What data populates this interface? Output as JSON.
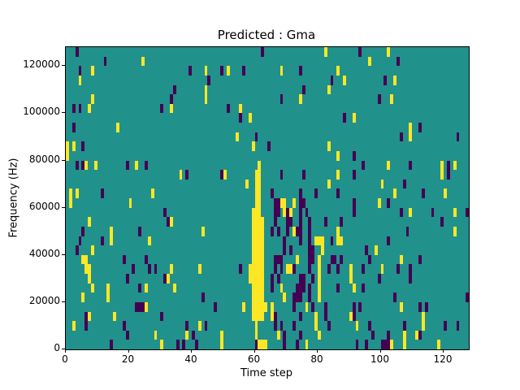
{
  "figure": {
    "title": "Predicted : Gma",
    "xlabel": "Time step",
    "ylabel": "Frequency (Hz)"
  },
  "chart_data": {
    "type": "heatmap",
    "title": "Predicted : Gma",
    "xlabel": "Time step",
    "ylabel": "Frequency (Hz)",
    "n_cols": 128,
    "n_rows": 32,
    "x_range": [
      0,
      128
    ],
    "y_range_hz": [
      0,
      128000
    ],
    "hz_per_row": 4000,
    "x_ticks": [
      0,
      20,
      40,
      60,
      80,
      100,
      120
    ],
    "y_ticks": [
      0,
      20000,
      40000,
      60000,
      80000,
      100000,
      120000
    ],
    "legend": "none",
    "grid": false,
    "colors": {
      "background_value_color": "#21918c",
      "yellow_value_color": "#fde725",
      "dark_value_color": "#440154",
      "axes_color": "#000000",
      "figure_background": "#ffffff"
    },
    "note": "cells are [col 0-127 from left, row 0-31 from top]; each row = 4000 Hz, row 31 = 0-4000 Hz",
    "yellow_cells": [
      [
        82,
        0
      ],
      [
        102,
        0
      ],
      [
        24,
        1
      ],
      [
        96,
        1
      ],
      [
        8,
        2
      ],
      [
        44,
        2
      ],
      [
        51,
        2
      ],
      [
        68,
        2
      ],
      [
        86,
        2
      ],
      [
        4,
        3
      ],
      [
        88,
        3
      ],
      [
        104,
        3
      ],
      [
        44,
        4
      ],
      [
        83,
        4
      ],
      [
        8,
        5
      ],
      [
        44,
        5
      ],
      [
        74,
        5
      ],
      [
        103,
        5
      ],
      [
        7,
        6
      ],
      [
        33,
        6
      ],
      [
        55,
        6
      ],
      [
        58,
        7
      ],
      [
        91,
        7
      ],
      [
        16,
        8
      ],
      [
        109,
        8
      ],
      [
        54,
        9
      ],
      [
        109,
        9
      ],
      [
        0,
        10
      ],
      [
        2,
        10
      ],
      [
        59,
        10
      ],
      [
        83,
        10
      ],
      [
        0,
        11
      ],
      [
        86,
        11
      ],
      [
        6,
        12
      ],
      [
        9,
        12
      ],
      [
        22,
        12
      ],
      [
        61,
        12
      ],
      [
        102,
        12
      ],
      [
        119,
        12
      ],
      [
        123,
        12
      ],
      [
        36,
        13
      ],
      [
        50,
        13
      ],
      [
        60,
        13
      ],
      [
        61,
        13
      ],
      [
        86,
        13
      ],
      [
        119,
        13
      ],
      [
        57,
        14
      ],
      [
        60,
        14
      ],
      [
        61,
        14
      ],
      [
        83,
        14
      ],
      [
        100,
        14
      ],
      [
        1,
        15
      ],
      [
        3,
        15
      ],
      [
        27,
        15
      ],
      [
        60,
        15
      ],
      [
        61,
        15
      ],
      [
        104,
        15
      ],
      [
        120,
        15
      ],
      [
        1,
        16
      ],
      [
        20,
        16
      ],
      [
        60,
        16
      ],
      [
        61,
        16
      ],
      [
        68,
        16
      ],
      [
        69,
        16
      ],
      [
        72,
        16
      ],
      [
        99,
        16
      ],
      [
        59,
        17
      ],
      [
        60,
        17
      ],
      [
        61,
        17
      ],
      [
        69,
        17
      ],
      [
        71,
        17
      ],
      [
        109,
        17
      ],
      [
        123,
        17
      ],
      [
        7,
        18
      ],
      [
        33,
        18
      ],
      [
        59,
        18
      ],
      [
        60,
        18
      ],
      [
        61,
        18
      ],
      [
        62,
        18
      ],
      [
        14,
        19
      ],
      [
        43,
        19
      ],
      [
        59,
        19
      ],
      [
        60,
        19
      ],
      [
        61,
        19
      ],
      [
        62,
        19
      ],
      [
        72,
        19
      ],
      [
        86,
        19
      ],
      [
        123,
        19
      ],
      [
        14,
        20
      ],
      [
        26,
        20
      ],
      [
        59,
        20
      ],
      [
        60,
        20
      ],
      [
        61,
        20
      ],
      [
        62,
        20
      ],
      [
        79,
        20
      ],
      [
        80,
        20
      ],
      [
        81,
        20
      ],
      [
        86,
        20
      ],
      [
        87,
        20
      ],
      [
        8,
        21
      ],
      [
        59,
        21
      ],
      [
        60,
        21
      ],
      [
        61,
        21
      ],
      [
        62,
        21
      ],
      [
        81,
        21
      ],
      [
        98,
        21
      ],
      [
        5,
        22
      ],
      [
        6,
        22
      ],
      [
        59,
        22
      ],
      [
        60,
        22
      ],
      [
        61,
        22
      ],
      [
        62,
        22
      ],
      [
        73,
        22
      ],
      [
        80,
        22
      ],
      [
        106,
        22
      ],
      [
        6,
        23
      ],
      [
        7,
        23
      ],
      [
        33,
        23
      ],
      [
        42,
        23
      ],
      [
        58,
        23
      ],
      [
        59,
        23
      ],
      [
        60,
        23
      ],
      [
        61,
        23
      ],
      [
        62,
        23
      ],
      [
        70,
        23
      ],
      [
        71,
        23
      ],
      [
        80,
        23
      ],
      [
        90,
        23
      ],
      [
        100,
        23
      ],
      [
        7,
        24
      ],
      [
        32,
        24
      ],
      [
        58,
        24
      ],
      [
        59,
        24
      ],
      [
        60,
        24
      ],
      [
        61,
        24
      ],
      [
        62,
        24
      ],
      [
        80,
        24
      ],
      [
        90,
        24
      ],
      [
        8,
        25
      ],
      [
        13,
        25
      ],
      [
        25,
        25
      ],
      [
        34,
        25
      ],
      [
        59,
        25
      ],
      [
        60,
        25
      ],
      [
        61,
        25
      ],
      [
        62,
        25
      ],
      [
        68,
        25
      ],
      [
        80,
        25
      ],
      [
        91,
        25
      ],
      [
        5,
        26
      ],
      [
        13,
        26
      ],
      [
        59,
        26
      ],
      [
        60,
        26
      ],
      [
        61,
        26
      ],
      [
        62,
        26
      ],
      [
        69,
        26
      ],
      [
        80,
        26
      ],
      [
        25,
        27
      ],
      [
        56,
        27
      ],
      [
        59,
        27
      ],
      [
        60,
        27
      ],
      [
        61,
        27
      ],
      [
        62,
        27
      ],
      [
        63,
        27
      ],
      [
        65,
        27
      ],
      [
        76,
        27
      ],
      [
        106,
        27
      ],
      [
        7,
        28
      ],
      [
        15,
        28
      ],
      [
        59,
        28
      ],
      [
        60,
        28
      ],
      [
        61,
        28
      ],
      [
        62,
        28
      ],
      [
        65,
        28
      ],
      [
        79,
        28
      ],
      [
        90,
        28
      ],
      [
        113,
        28
      ],
      [
        2,
        29
      ],
      [
        42,
        29
      ],
      [
        60,
        29
      ],
      [
        79,
        29
      ],
      [
        92,
        29
      ],
      [
        113,
        29
      ],
      [
        28,
        30
      ],
      [
        38,
        30
      ],
      [
        49,
        30
      ],
      [
        60,
        30
      ],
      [
        67,
        30
      ],
      [
        80,
        30
      ],
      [
        107,
        30
      ],
      [
        111,
        30
      ],
      [
        30,
        31
      ],
      [
        49,
        31
      ],
      [
        61,
        31
      ],
      [
        62,
        31
      ],
      [
        63,
        31
      ],
      [
        76,
        31
      ],
      [
        103,
        31
      ],
      [
        107,
        31
      ],
      [
        118,
        31
      ]
    ],
    "dark_cells": [
      [
        3,
        0
      ],
      [
        62,
        0
      ],
      [
        93,
        0
      ],
      [
        12,
        1
      ],
      [
        105,
        1
      ],
      [
        4,
        2
      ],
      [
        39,
        2
      ],
      [
        49,
        2
      ],
      [
        56,
        2
      ],
      [
        74,
        2
      ],
      [
        45,
        3
      ],
      [
        84,
        3
      ],
      [
        101,
        3
      ],
      [
        34,
        4
      ],
      [
        75,
        4
      ],
      [
        33,
        5
      ],
      [
        68,
        5
      ],
      [
        99,
        5
      ],
      [
        2,
        6
      ],
      [
        4,
        6
      ],
      [
        30,
        6
      ],
      [
        51,
        6
      ],
      [
        55,
        7
      ],
      [
        88,
        7
      ],
      [
        2,
        8
      ],
      [
        112,
        8
      ],
      [
        60,
        9
      ],
      [
        106,
        9
      ],
      [
        124,
        9
      ],
      [
        5,
        10
      ],
      [
        64,
        10
      ],
      [
        91,
        11
      ],
      [
        3,
        12
      ],
      [
        5,
        12
      ],
      [
        19,
        12
      ],
      [
        25,
        12
      ],
      [
        94,
        12
      ],
      [
        109,
        12
      ],
      [
        121,
        12
      ],
      [
        38,
        13
      ],
      [
        49,
        13
      ],
      [
        68,
        13
      ],
      [
        75,
        13
      ],
      [
        91,
        13
      ],
      [
        121,
        13
      ],
      [
        107,
        14
      ],
      [
        11,
        15
      ],
      [
        65,
        15
      ],
      [
        74,
        15
      ],
      [
        79,
        15
      ],
      [
        86,
        15
      ],
      [
        113,
        15
      ],
      [
        66,
        16
      ],
      [
        67,
        16
      ],
      [
        74,
        16
      ],
      [
        75,
        16
      ],
      [
        91,
        16
      ],
      [
        102,
        16
      ],
      [
        31,
        17
      ],
      [
        66,
        17
      ],
      [
        67,
        17
      ],
      [
        70,
        17
      ],
      [
        74,
        17
      ],
      [
        76,
        17
      ],
      [
        91,
        17
      ],
      [
        106,
        17
      ],
      [
        116,
        17
      ],
      [
        127,
        17
      ],
      [
        32,
        18
      ],
      [
        66,
        18
      ],
      [
        70,
        18
      ],
      [
        71,
        18
      ],
      [
        74,
        18
      ],
      [
        77,
        18
      ],
      [
        82,
        18
      ],
      [
        87,
        18
      ],
      [
        119,
        18
      ],
      [
        5,
        19
      ],
      [
        23,
        19
      ],
      [
        65,
        19
      ],
      [
        67,
        19
      ],
      [
        70,
        19
      ],
      [
        73,
        19
      ],
      [
        74,
        19
      ],
      [
        77,
        19
      ],
      [
        108,
        19
      ],
      [
        4,
        20
      ],
      [
        11,
        20
      ],
      [
        69,
        20
      ],
      [
        74,
        20
      ],
      [
        77,
        20
      ],
      [
        84,
        20
      ],
      [
        102,
        20
      ],
      [
        3,
        21
      ],
      [
        69,
        21
      ],
      [
        71,
        21
      ],
      [
        77,
        21
      ],
      [
        78,
        21
      ],
      [
        95,
        21
      ],
      [
        18,
        22
      ],
      [
        25,
        22
      ],
      [
        66,
        22
      ],
      [
        67,
        22
      ],
      [
        68,
        22
      ],
      [
        77,
        22
      ],
      [
        78,
        22
      ],
      [
        84,
        22
      ],
      [
        85,
        22
      ],
      [
        87,
        22
      ],
      [
        96,
        22
      ],
      [
        112,
        22
      ],
      [
        21,
        23
      ],
      [
        26,
        23
      ],
      [
        28,
        23
      ],
      [
        55,
        23
      ],
      [
        66,
        23
      ],
      [
        68,
        23
      ],
      [
        72,
        23
      ],
      [
        77,
        23
      ],
      [
        83,
        23
      ],
      [
        86,
        23
      ],
      [
        94,
        23
      ],
      [
        105,
        23
      ],
      [
        109,
        23
      ],
      [
        19,
        24
      ],
      [
        31,
        24
      ],
      [
        65,
        24
      ],
      [
        67,
        24
      ],
      [
        74,
        24
      ],
      [
        75,
        24
      ],
      [
        78,
        24
      ],
      [
        99,
        24
      ],
      [
        109,
        24
      ],
      [
        23,
        25
      ],
      [
        65,
        25
      ],
      [
        73,
        25
      ],
      [
        74,
        25
      ],
      [
        75,
        25
      ],
      [
        77,
        25
      ],
      [
        86,
        25
      ],
      [
        94,
        25
      ],
      [
        43,
        26
      ],
      [
        72,
        26
      ],
      [
        73,
        26
      ],
      [
        74,
        26
      ],
      [
        77,
        26
      ],
      [
        104,
        26
      ],
      [
        127,
        26
      ],
      [
        22,
        27
      ],
      [
        23,
        27
      ],
      [
        24,
        27
      ],
      [
        47,
        27
      ],
      [
        72,
        27
      ],
      [
        78,
        27
      ],
      [
        82,
        27
      ],
      [
        91,
        27
      ],
      [
        93,
        27
      ],
      [
        112,
        27
      ],
      [
        114,
        27
      ],
      [
        6,
        28
      ],
      [
        30,
        28
      ],
      [
        66,
        28
      ],
      [
        74,
        28
      ],
      [
        82,
        28
      ],
      [
        91,
        28
      ],
      [
        6,
        29
      ],
      [
        18,
        29
      ],
      [
        38,
        29
      ],
      [
        44,
        29
      ],
      [
        66,
        29
      ],
      [
        68,
        29
      ],
      [
        72,
        29
      ],
      [
        83,
        29
      ],
      [
        96,
        29
      ],
      [
        107,
        29
      ],
      [
        120,
        29
      ],
      [
        124,
        29
      ],
      [
        19,
        30
      ],
      [
        40,
        30
      ],
      [
        69,
        30
      ],
      [
        74,
        30
      ],
      [
        97,
        30
      ],
      [
        102,
        30
      ],
      [
        112,
        30
      ],
      [
        14,
        31
      ],
      [
        35,
        31
      ],
      [
        37,
        31
      ],
      [
        41,
        31
      ],
      [
        60,
        31
      ],
      [
        69,
        31
      ],
      [
        73,
        31
      ],
      [
        92,
        31
      ],
      [
        95,
        31
      ],
      [
        100,
        31
      ],
      [
        101,
        31
      ],
      [
        102,
        31
      ]
    ]
  }
}
